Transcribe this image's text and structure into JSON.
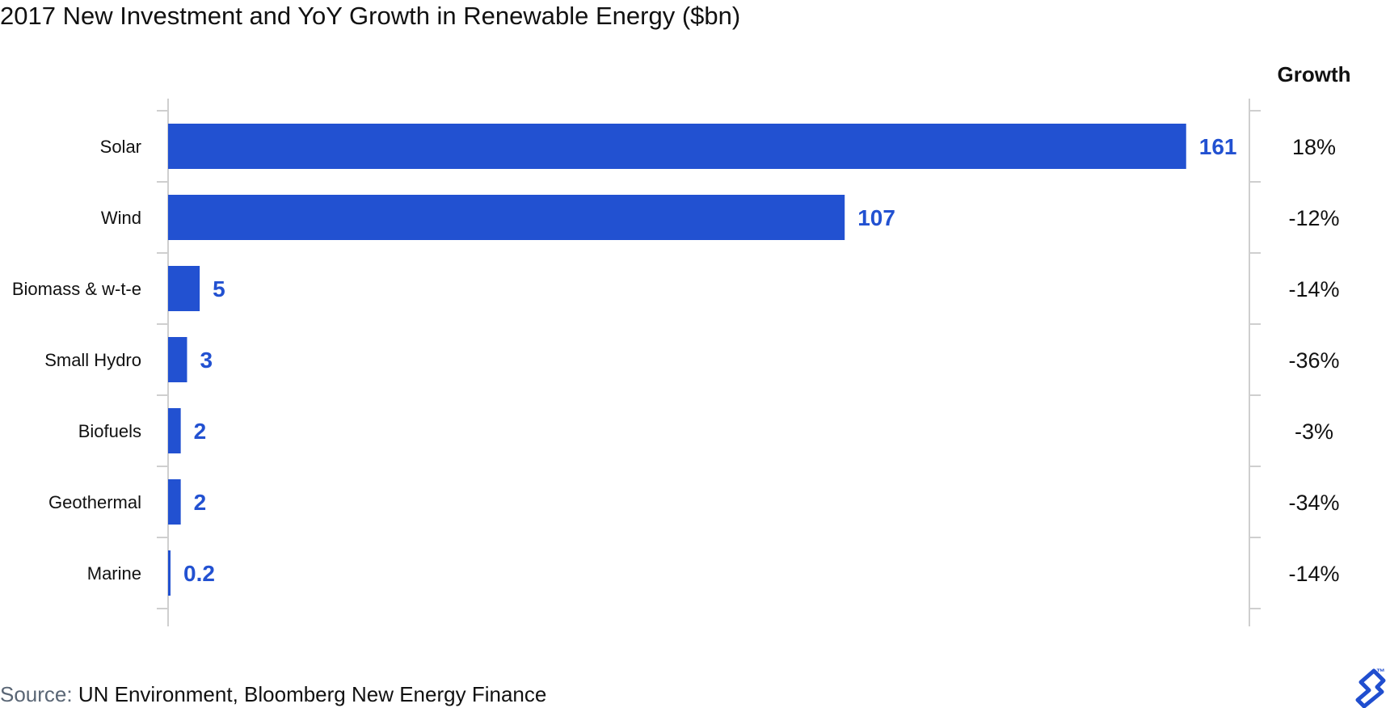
{
  "chart_data": {
    "type": "bar",
    "orientation": "horizontal",
    "title": "2017 New Investment and YoY Growth in Renewable Energy ($bn)",
    "categories": [
      "Solar",
      "Wind",
      "Biomass  & w-t-e",
      "Small Hydro",
      "Biofuels",
      "Geothermal",
      "Marine"
    ],
    "values": [
      161,
      107,
      5,
      3,
      2,
      2,
      0.2
    ],
    "value_labels": [
      "161",
      "107",
      "5",
      "3",
      "2",
      "2",
      "0.2"
    ],
    "growth_header": "Growth",
    "growth": [
      "18%",
      "-12%",
      "-14%",
      "-36%",
      "-3%",
      "-34%",
      "-14%"
    ],
    "xlim": [
      0,
      171
    ],
    "grid": false,
    "legend": "none",
    "bar_color": "#2251d1"
  },
  "source": {
    "prefix": "Source:",
    "text": "UN Environment, Bloomberg New Energy Finance"
  },
  "logo": {
    "icon": "toptal-logo-icon",
    "mark": "™",
    "color": "#204ecf"
  }
}
